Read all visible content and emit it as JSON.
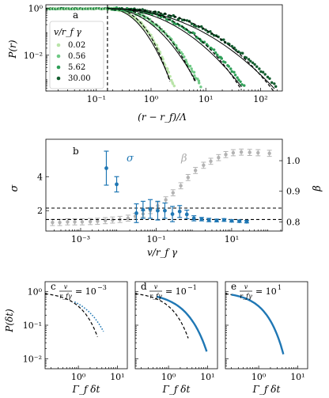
{
  "chart_data": [
    {
      "id": "a",
      "type": "scatter",
      "panel_label": "a",
      "xlabel": "(r − r_f)/Λ",
      "ylabel": "P(r)",
      "xscale": "log",
      "yscale": "log",
      "xlim": [
        0.012,
        250
      ],
      "ylim": [
        0.0003,
        1.4
      ],
      "xticks": [
        {
          "v": 0.1,
          "label": "10⁻¹"
        },
        {
          "v": 1,
          "label": "10⁰"
        },
        {
          "v": 10,
          "label": "10¹"
        },
        {
          "v": 100,
          "label": "10²"
        }
      ],
      "yticks": [
        {
          "v": 1,
          "label": "10⁰"
        },
        {
          "v": 0.01,
          "label": "10⁻²"
        }
      ],
      "legend": {
        "title": "v/r_f γ",
        "placement": "upper-left"
      },
      "vline_x": 0.16,
      "series": [
        {
          "name": "0.02",
          "color": "#b9e4a8",
          "x0": 0.16,
          "x_end": 2.6,
          "fit_end": 2.2
        },
        {
          "name": "0.56",
          "color": "#6fc985",
          "x0": 0.16,
          "x_end": 8.0,
          "fit_end": 6.5
        },
        {
          "name": "5.62",
          "color": "#2e9e57",
          "x0": 0.16,
          "x_end": 50,
          "fit_end": 45
        },
        {
          "name": "30.00",
          "color": "#145e30",
          "x0": 0.16,
          "x_end": 190,
          "fit_end": 180
        }
      ]
    },
    {
      "id": "b",
      "type": "scatter",
      "panel_label": "b",
      "xlabel": "v/r_f γ",
      "ylabel": "σ",
      "ylabel_right": "β",
      "xscale": "log",
      "xlim": [
        0.00012,
        220
      ],
      "ylim": [
        0.8,
        6.2
      ],
      "ylim_right": [
        0.77,
        1.07
      ],
      "xticks": [
        {
          "v": 0.001,
          "label": "10⁻³"
        },
        {
          "v": 0.1,
          "label": "10⁻¹"
        },
        {
          "v": 10,
          "label": "10¹"
        }
      ],
      "yticks": [
        {
          "v": 2,
          "label": "2"
        },
        {
          "v": 4,
          "label": "4"
        }
      ],
      "yticks_right": [
        {
          "v": 0.8,
          "label": "0.8"
        },
        {
          "v": 0.9,
          "label": "0.9"
        },
        {
          "v": 1.0,
          "label": "1.0"
        }
      ],
      "hlines": [
        2.15,
        1.48
      ],
      "sigma_label": "σ",
      "beta_label": "β",
      "sigma": {
        "color": "#1f77b4",
        "x": [
          0.0048,
          0.009,
          0.03,
          0.045,
          0.07,
          0.11,
          0.17,
          0.27,
          0.42,
          0.65,
          1.0,
          1.6,
          2.5,
          4.0,
          6.3,
          10,
          16,
          25
        ],
        "y": [
          4.5,
          3.55,
          1.85,
          2.05,
          2.1,
          2.0,
          2.0,
          1.8,
          1.95,
          1.78,
          1.55,
          1.5,
          1.45,
          1.42,
          1.45,
          1.4,
          1.38,
          1.35
        ],
        "err": [
          1.0,
          0.45,
          0.55,
          0.5,
          0.55,
          0.55,
          0.45,
          0.45,
          0.35,
          0.25,
          0.15,
          0.1,
          0.1,
          0.08,
          0.08,
          0.07,
          0.07,
          0.07
        ]
      },
      "beta": {
        "color": "#b3b3b3",
        "x": [
          0.00018,
          0.00028,
          0.00045,
          0.0007,
          0.0011,
          0.0018,
          0.0028,
          0.0045,
          0.007,
          0.011,
          0.018,
          0.028,
          0.045,
          0.07,
          0.11,
          0.18,
          0.28,
          0.45,
          0.7,
          1.1,
          1.8,
          2.8,
          4.5,
          7,
          11,
          18,
          30,
          50,
          100
        ],
        "y": [
          0.798,
          0.798,
          0.8,
          0.8,
          0.8,
          0.801,
          0.802,
          0.804,
          0.806,
          0.808,
          0.812,
          0.818,
          0.826,
          0.837,
          0.853,
          0.872,
          0.895,
          0.918,
          0.945,
          0.968,
          0.985,
          0.998,
          1.01,
          1.02,
          1.026,
          1.028,
          1.027,
          1.026,
          1.024
        ],
        "err": 0.01
      }
    },
    {
      "id": "c",
      "type": "line",
      "panel_label": "c",
      "annotation": "v/r_f γ = 10⁻³",
      "ann_exp": "−3",
      "xlabel": "Γ_f δt",
      "ylabel": "P(δt)",
      "xscale": "log",
      "yscale": "log",
      "xlim": [
        0.14,
        18
      ],
      "ylim": [
        0.005,
        2.0
      ],
      "xticks": [
        {
          "v": 1,
          "label": "10⁰"
        },
        {
          "v": 10,
          "label": "10¹"
        }
      ],
      "yticks": [
        {
          "v": 1,
          "label": "10⁰"
        },
        {
          "v": 0.1,
          "label": "10⁻¹"
        },
        {
          "v": 0.01,
          "label": "10⁻²"
        }
      ],
      "dashed_end": 3.1,
      "data": {
        "color": "#1f77b4",
        "x_start": 0.8,
        "x_end": 4.4,
        "beta": 0.8,
        "scale": 1.25,
        "dotted": true
      }
    },
    {
      "id": "d",
      "type": "line",
      "panel_label": "d",
      "annotation": "v/r_f γ = 10⁻¹",
      "ann_exp": "−1",
      "xlabel": "Γ_f δt",
      "xscale": "log",
      "yscale": "log",
      "xlim": [
        0.14,
        18
      ],
      "ylim": [
        0.005,
        2.0
      ],
      "xticks": [
        {
          "v": 1,
          "label": "10⁰"
        },
        {
          "v": 10,
          "label": "10¹"
        }
      ],
      "dashed_end": 3.2,
      "data": {
        "color": "#1f77b4",
        "x_start": 0.5,
        "x_end": 9.5,
        "beta": 0.85,
        "scale": 1.8,
        "dotted": false
      }
    },
    {
      "id": "e",
      "type": "line",
      "panel_label": "e",
      "annotation": "v/r_f γ = 10¹",
      "ann_exp": "1",
      "xlabel": "Γ_f δt",
      "xscale": "log",
      "yscale": "log",
      "xlim": [
        0.14,
        18
      ],
      "ylim": [
        0.005,
        2.0
      ],
      "xticks": [
        {
          "v": 1,
          "label": "10⁰"
        },
        {
          "v": 10,
          "label": "10¹"
        }
      ],
      "dashed_end": 4.2,
      "data": {
        "color": "#1f77b4",
        "x_start": 0.2,
        "x_end": 4.3,
        "beta": 1.0,
        "scale": 1.0,
        "dotted": false
      }
    }
  ]
}
